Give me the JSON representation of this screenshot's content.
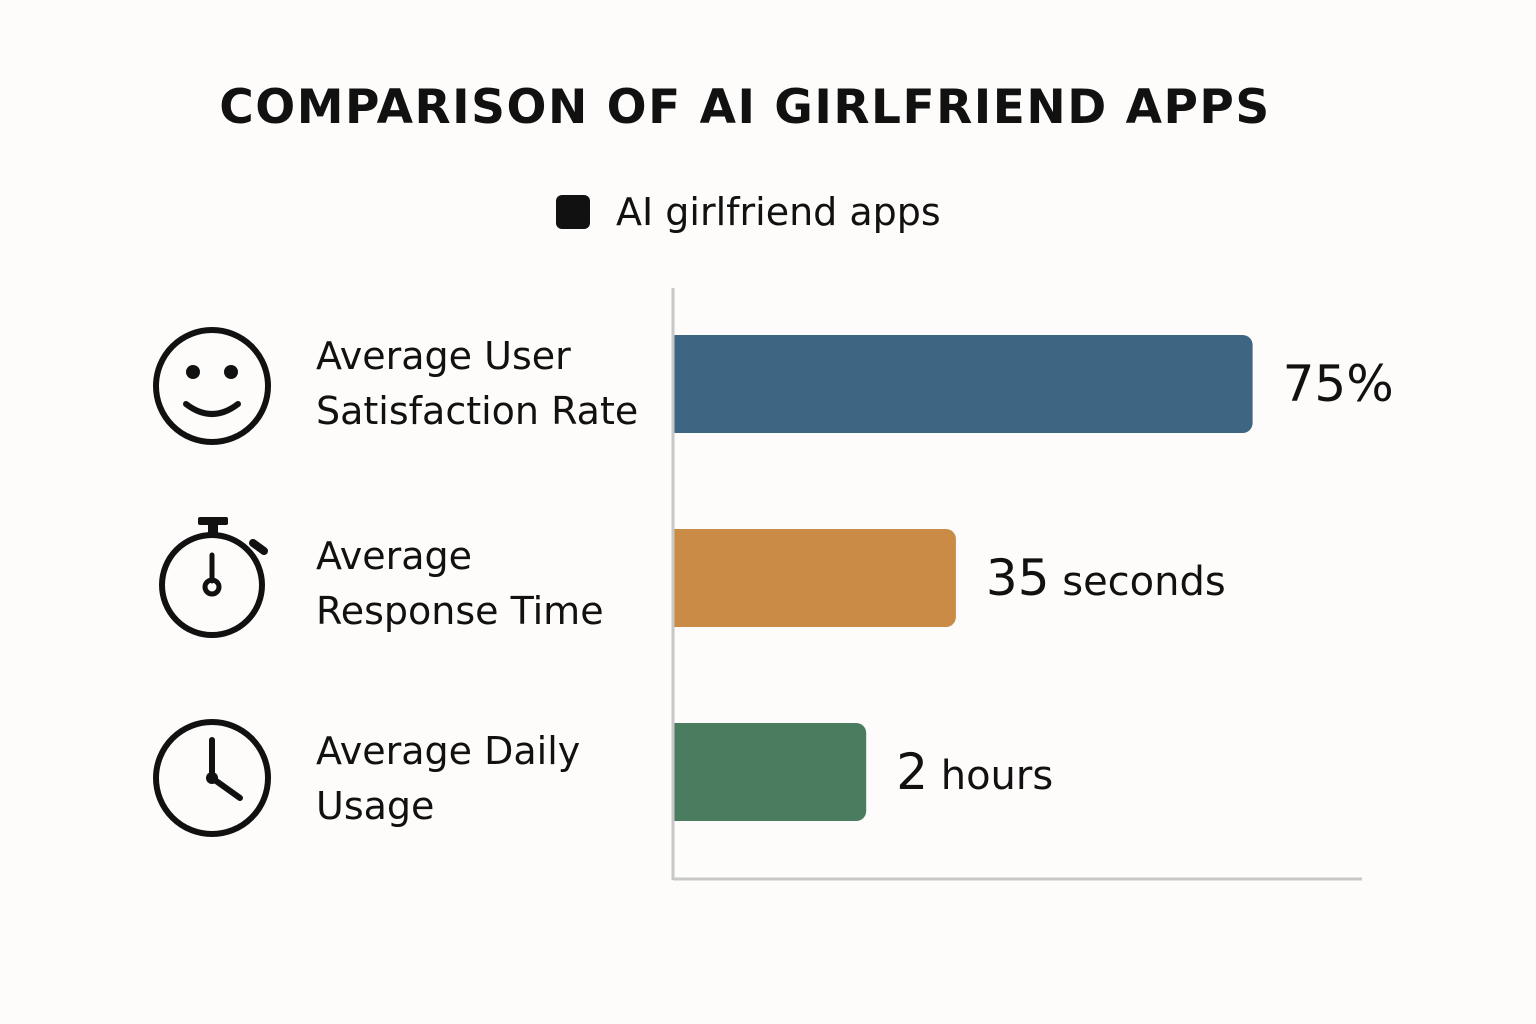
{
  "chart_data": {
    "type": "bar",
    "orientation": "horizontal",
    "title": "COMPARISON OF AI GIRLFRIEND APPS",
    "legend": {
      "label": "AI girlfriend apps",
      "color": "#111111",
      "placement": "top-center"
    },
    "categories": [
      {
        "lines": [
          "Average User",
          "Satisfaction Rate"
        ],
        "icon": "smiley-face-icon",
        "value_number": "75%",
        "value_unit": "",
        "fraction": 0.84,
        "color": "#3d6682"
      },
      {
        "lines": [
          "Average",
          "Response Time"
        ],
        "icon": "stopwatch-icon",
        "value_number": "35",
        "value_unit": "seconds",
        "fraction": 0.41,
        "color": "#c98b45"
      },
      {
        "lines": [
          "Average Daily",
          "Usage"
        ],
        "icon": "clock-icon",
        "value_number": "2",
        "value_unit": "hours",
        "fraction": 0.28,
        "color": "#4a7c60"
      }
    ],
    "grid": false
  }
}
